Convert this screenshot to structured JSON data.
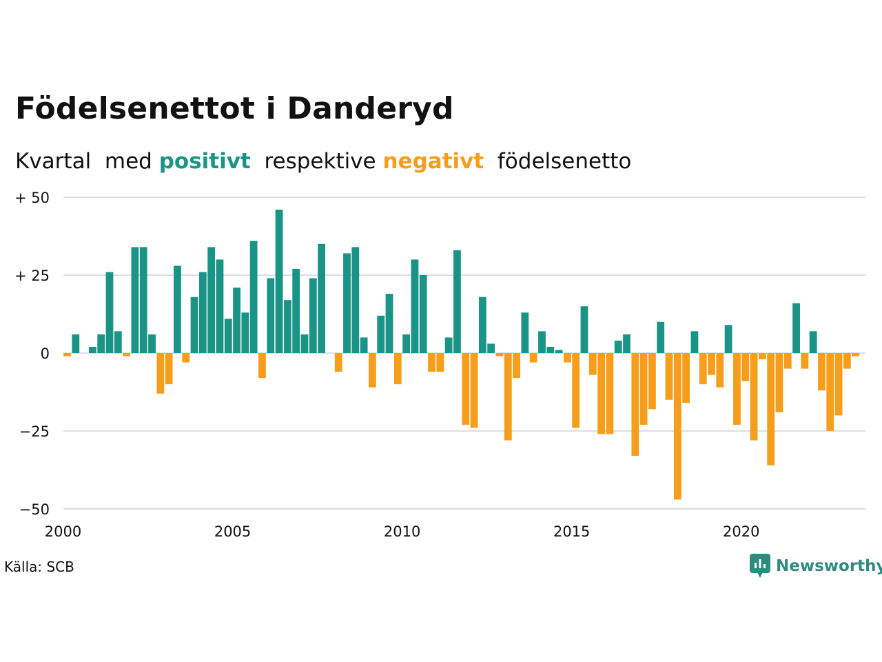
{
  "title": "Födelsenettot i Danderyd",
  "subtitle": {
    "part1": "Kvartal  med ",
    "positive": "positivt",
    "part2": "  respektive ",
    "negative": "negativt",
    "part3": "  födelsenetto"
  },
  "source": "Källa: SCB",
  "brand": "Newsworthy",
  "colors": {
    "positive": "#1a9486",
    "negative": "#f59e1c",
    "grid": "#dddde3",
    "logo": "#2e8b7d"
  },
  "chart_data": {
    "type": "bar",
    "title": "Födelsenettot i Danderyd",
    "x_start": 2000,
    "x_step": 0.25,
    "xlim": [
      2000,
      2023.5
    ],
    "xticks": [
      2000,
      2005,
      2010,
      2015,
      2020
    ],
    "xtick_labels": [
      "2000",
      "2005",
      "2010",
      "2015",
      "2020"
    ],
    "ylim": [
      -50,
      50
    ],
    "yticks": [
      50,
      25,
      0,
      -25,
      -50
    ],
    "ytick_labels": [
      "+ 50",
      "+ 25",
      "0",
      "−25",
      "−50"
    ],
    "grid": true,
    "values": [
      -1,
      6,
      0,
      2,
      6,
      26,
      7,
      -1,
      34,
      34,
      6,
      -13,
      -10,
      28,
      -3,
      18,
      26,
      34,
      30,
      11,
      21,
      13,
      36,
      -8,
      24,
      46,
      17,
      27,
      6,
      24,
      35,
      0,
      -6,
      32,
      34,
      5,
      -11,
      12,
      19,
      -10,
      6,
      30,
      25,
      -6,
      -6,
      5,
      33,
      -23,
      -24,
      18,
      3,
      -1,
      -28,
      -8,
      13,
      -3,
      7,
      2,
      1,
      -3,
      -24,
      15,
      -7,
      -26,
      -26,
      4,
      6,
      -33,
      -23,
      -18,
      10,
      -15,
      -47,
      -16,
      7,
      -10,
      -7,
      -11,
      9,
      -23,
      -9,
      -28,
      -2,
      -36,
      -19,
      -5,
      16,
      -5,
      7,
      -12,
      -25,
      -20,
      -5,
      -1
    ]
  }
}
